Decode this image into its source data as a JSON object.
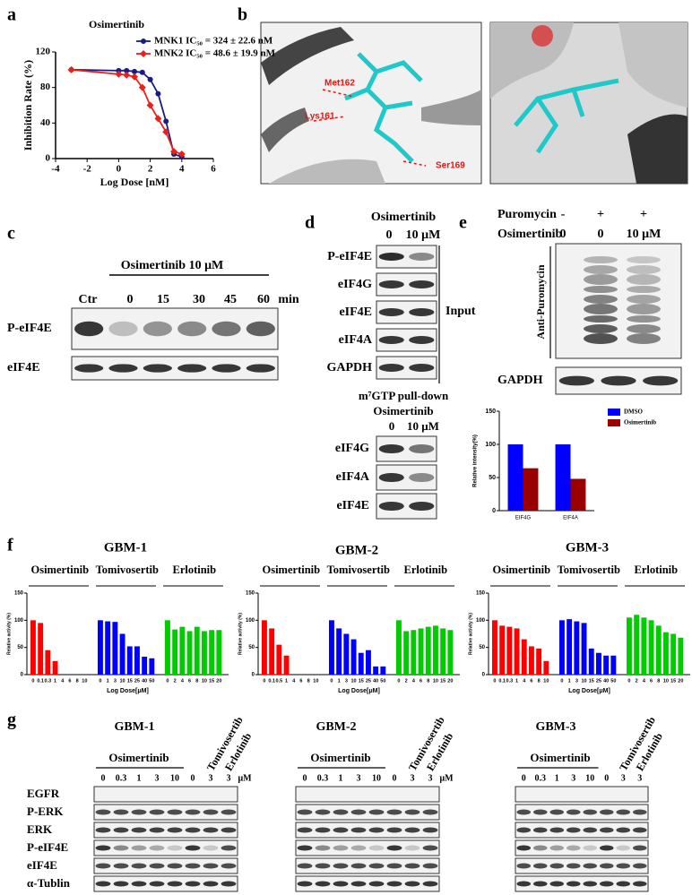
{
  "panel_labels": [
    "a",
    "b",
    "c",
    "d",
    "e",
    "f",
    "g"
  ],
  "chart_data": [
    {
      "type": "line",
      "title": "Osimertinib",
      "xlabel": "Log Dose [nM]",
      "ylabel": "Inhibition Rate (%)",
      "xlim": [
        -4,
        6
      ],
      "xticks": [
        -4,
        -2,
        0,
        2,
        4,
        6
      ],
      "ylim": [
        0,
        120
      ],
      "yticks": [
        0,
        40,
        80,
        120
      ],
      "legend": "upper right",
      "x": [
        -3,
        0,
        0.5,
        1,
        1.5,
        2,
        2.5,
        3,
        3.5,
        4
      ],
      "series": [
        {
          "name": "MNK1 IC₅₀ = 324 ± 22.6 nM",
          "color": "#1c1c80",
          "marker": "circle",
          "values": [
            100,
            99,
            99,
            98,
            97,
            89,
            73,
            42,
            5,
            2
          ]
        },
        {
          "name": "MNK2 IC₅₀ = 48.6 ± 19.9 nM",
          "color": "#e8201c",
          "marker": "diamond",
          "values": [
            100,
            95,
            94,
            92,
            80,
            60,
            45,
            30,
            8,
            5
          ]
        }
      ]
    },
    {
      "type": "bar",
      "ylabel": "Relative  intensity(%)",
      "ylim": [
        0,
        150
      ],
      "yticks": [
        0,
        50,
        100,
        150
      ],
      "legend": "upper right",
      "categories": [
        "EIF4G",
        "EIF4A"
      ],
      "series": [
        {
          "name": "DMSO",
          "color": "#0000ff",
          "values": [
            100,
            100
          ]
        },
        {
          "name": "Osimertinib",
          "color": "#990000",
          "values": [
            64,
            48
          ]
        }
      ]
    },
    {
      "type": "bar",
      "title": "GBM-1",
      "ylabel": "Relative activity (%)",
      "xlabel": "Log Dose[μM]",
      "ylim": [
        0,
        150
      ],
      "yticks": [
        0,
        50,
        100,
        150
      ],
      "series": [
        {
          "name": "Osimertinib",
          "color": "#ff0000",
          "categories": [
            "0",
            "0.1",
            "0.3",
            "1",
            "4",
            "6",
            "8",
            "10"
          ],
          "values": [
            100,
            95,
            45,
            25,
            0,
            0,
            0,
            0
          ]
        },
        {
          "name": "Tomivosertib",
          "color": "#0000ff",
          "categories": [
            "0",
            "1",
            "3",
            "10",
            "15",
            "25",
            "40",
            "50"
          ],
          "values": [
            100,
            98,
            97,
            75,
            52,
            52,
            33,
            30
          ]
        },
        {
          "name": "Erlotinib",
          "color": "#00cc00",
          "categories": [
            "0",
            "2",
            "4",
            "6",
            "8",
            "10",
            "15",
            "20"
          ],
          "values": [
            100,
            83,
            88,
            80,
            88,
            80,
            82,
            82
          ]
        }
      ]
    },
    {
      "type": "bar",
      "title": "GBM-2",
      "ylabel": "Relative activity (%)",
      "xlabel": "Log Dose[μM]",
      "ylim": [
        0,
        150
      ],
      "yticks": [
        0,
        50,
        100,
        150
      ],
      "series": [
        {
          "name": "Osimertinib",
          "color": "#ff0000",
          "categories": [
            "0",
            "0.1",
            "0.5",
            "1",
            "4",
            "6",
            "8",
            "10"
          ],
          "values": [
            100,
            85,
            55,
            35,
            0,
            0,
            0,
            0
          ]
        },
        {
          "name": "Tomivosertib",
          "color": "#0000ff",
          "categories": [
            "0",
            "1",
            "3",
            "10",
            "15",
            "25",
            "40",
            "50"
          ],
          "values": [
            100,
            85,
            75,
            65,
            40,
            45,
            15,
            15
          ]
        },
        {
          "name": "Erlotinib",
          "color": "#00cc00",
          "categories": [
            "0",
            "2",
            "4",
            "6",
            "8",
            "10",
            "15",
            "20"
          ],
          "values": [
            100,
            80,
            82,
            85,
            88,
            90,
            85,
            82
          ]
        }
      ]
    },
    {
      "type": "bar",
      "title": "GBM-3",
      "ylabel": "Relative activity (%)",
      "xlabel": "Log Dose[μM]",
      "ylim": [
        0,
        150
      ],
      "yticks": [
        0,
        50,
        100,
        150
      ],
      "series": [
        {
          "name": "Osimertinib",
          "color": "#ff0000",
          "categories": [
            "0",
            "0.1",
            "0.3",
            "1",
            "4",
            "6",
            "8",
            "10"
          ],
          "values": [
            100,
            90,
            88,
            85,
            65,
            52,
            48,
            25
          ]
        },
        {
          "name": "Tomivosertib",
          "color": "#0000ff",
          "categories": [
            "0",
            "1",
            "3",
            "10",
            "15",
            "25",
            "40",
            "50"
          ],
          "values": [
            100,
            102,
            98,
            95,
            48,
            40,
            35,
            35
          ]
        },
        {
          "name": "Erlotinib",
          "color": "#00cc00",
          "categories": [
            "0",
            "2",
            "4",
            "6",
            "8",
            "10",
            "15",
            "20"
          ],
          "values": [
            105,
            110,
            105,
            100,
            90,
            78,
            75,
            68
          ]
        }
      ]
    }
  ],
  "panel_b": {
    "residues": [
      "Met162",
      "Lys161",
      "Ser169"
    ]
  },
  "panel_c": {
    "treatment": "Osimertinib 10 μM",
    "lanes": [
      "Ctr",
      "0",
      "15",
      "30",
      "45",
      "60"
    ],
    "unit": "min",
    "rows": [
      "P-eIF4E",
      "eIF4E"
    ]
  },
  "panel_d": {
    "drug": "Osimertinib",
    "lanes": [
      "0",
      "10 μM"
    ],
    "input_rows": [
      "P-eIF4E",
      "eIF4G",
      "eIF4E",
      "eIF4A",
      "GAPDH"
    ],
    "input_label": "Input",
    "pulldown_title": "m⁷GTP pull-down",
    "pulldown_drug": "Osimertinib",
    "pulldown_lanes": [
      "0",
      "10 μM"
    ],
    "pulldown_rows": [
      "eIF4G",
      "eIF4A",
      "eIF4E"
    ]
  },
  "panel_e": {
    "row_labels": [
      "Puromycin",
      "Osimertinib"
    ],
    "puromycin": [
      "-",
      "+",
      "+"
    ],
    "osimertinib": [
      "0",
      "0",
      "10 μM"
    ],
    "blot_label": "Anti-Puromycin",
    "loading": "GAPDH"
  },
  "panel_g": [
    {
      "title": "GBM-1",
      "drug": "Osimertinib",
      "lanes": [
        "0",
        "0.3",
        "1",
        "3",
        "10",
        "0",
        "3",
        "3"
      ],
      "unit": "μM",
      "rotated": [
        "Tomivosertib",
        "Erlotinib"
      ],
      "rows": [
        "EGFR",
        "P-ERK",
        "ERK",
        "P-eIF4E",
        "eIF4E",
        "α-Tublin"
      ]
    },
    {
      "title": "GBM-2",
      "drug": "Osimertinib",
      "lanes": [
        "0",
        "0.3",
        "1",
        "3",
        "10",
        "0",
        "3",
        "3"
      ],
      "unit": "μM",
      "rotated": [
        "Tomivosertib",
        "Erlotinib"
      ]
    },
    {
      "title": "GBM-3",
      "drug": "Osimertinib",
      "lanes": [
        "0",
        "0.3",
        "1",
        "3",
        "10",
        "0",
        "3",
        "3"
      ],
      "rotated": [
        "Tomivosertib",
        "Erlotinib"
      ]
    }
  ]
}
